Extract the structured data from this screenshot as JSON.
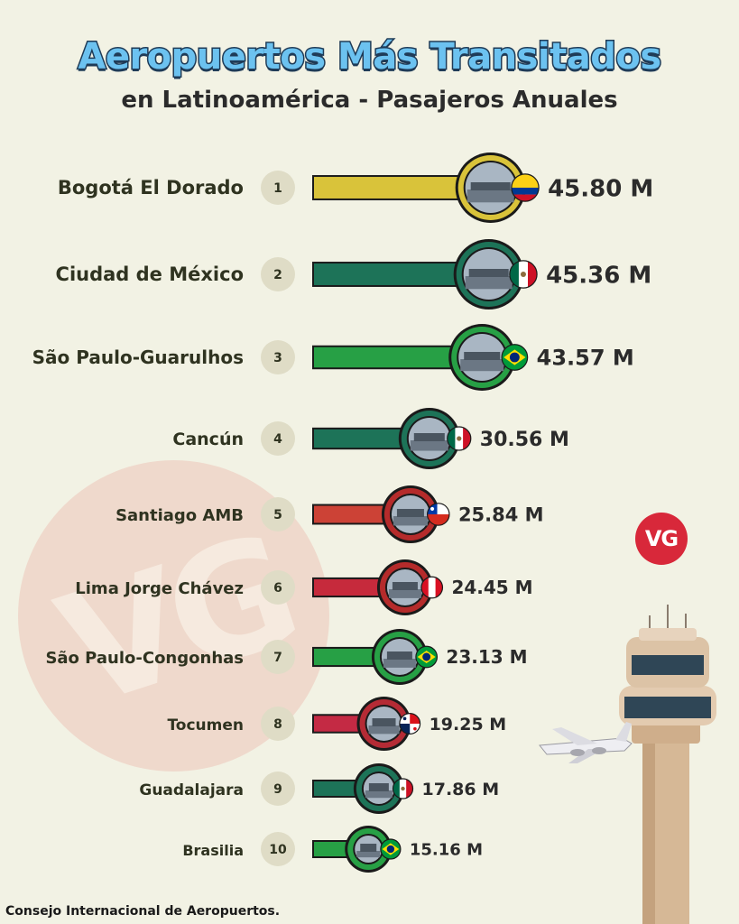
{
  "header": {
    "title": "Aeropuertos Más Transitados",
    "subtitle": "en Latinoamérica - Pasajeros Anuales"
  },
  "badge": {
    "text": "VG",
    "watermark": "VG"
  },
  "footer": {
    "source": "Consejo Internacional de Aeropuertos."
  },
  "chart_data": {
    "type": "bar",
    "orientation": "horizontal",
    "unit": "M",
    "categories": [
      "Bogotá El Dorado",
      "Ciudad de México",
      "São Paulo-Guarulhos",
      "Cancún",
      "Santiago AMB",
      "Lima Jorge Chávez",
      "São Paulo-Congonhas",
      "Tocumen",
      "Guadalajara",
      "Brasilia"
    ],
    "ranks": [
      "1",
      "2",
      "3",
      "4",
      "5",
      "6",
      "7",
      "8",
      "9",
      "10"
    ],
    "values": [
      45.8,
      45.36,
      43.57,
      30.56,
      25.84,
      24.45,
      23.13,
      19.25,
      17.86,
      15.16
    ],
    "labels": [
      "45.80 M",
      "45.36 M",
      "43.57 M",
      "30.56 M",
      "25.84 M",
      "24.45 M",
      "23.13 M",
      "19.25 M",
      "17.86 M",
      "15.16 M"
    ],
    "flags": [
      "colombia",
      "mexico",
      "brazil",
      "mexico",
      "chile",
      "peru",
      "brazil",
      "panama",
      "mexico",
      "brazil"
    ],
    "bar_colors": [
      "#d9c33a",
      "#1d7358",
      "#27a045",
      "#1d7358",
      "#cc4236",
      "#c62a3c",
      "#27a045",
      "#c42a44",
      "#1d7358",
      "#27a045"
    ],
    "ring_colors": [
      "#d9c33a",
      "#1d7358",
      "#27a045",
      "#1d7358",
      "#b52b2b",
      "#b52b2b",
      "#27a045",
      "#b52b35",
      "#1d7358",
      "#27a045"
    ]
  }
}
